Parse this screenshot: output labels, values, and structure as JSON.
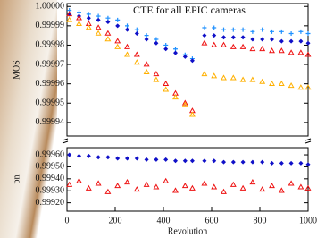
{
  "chart_data": [
    {
      "type": "scatter",
      "title": "CTE for all EPIC cameras",
      "ylabel": "MOS",
      "x": [
        10,
        50,
        90,
        130,
        170,
        210,
        250,
        290,
        330,
        370,
        410,
        450,
        490,
        520,
        570,
        610,
        650,
        690,
        730,
        770,
        810,
        850,
        890,
        930,
        970,
        1000
      ],
      "xlim": [
        0,
        1000
      ],
      "ylim": [
        0.999933,
        1.0000015
      ],
      "yticks": [
        {
          "value": 1.0,
          "label": "1.00000"
        },
        {
          "value": 0.99999,
          "label": "0.99999"
        },
        {
          "value": 0.99998,
          "label": "0.99998"
        },
        {
          "value": 0.99997,
          "label": "0.99997"
        },
        {
          "value": 0.99996,
          "label": "0.99996"
        },
        {
          "value": 0.99995,
          "label": "0.99995"
        },
        {
          "value": 0.99994,
          "label": "0.99994"
        }
      ],
      "grid": false,
      "series": [
        {
          "color": "#1e90ff",
          "marker": "plus",
          "values": [
            0.999998,
            0.999997,
            0.999996,
            0.999995,
            0.999994,
            0.999993,
            0.99999,
            0.999988,
            0.999985,
            0.999983,
            0.99998,
            0.999978,
            0.999975,
            0.999973,
            0.999989,
            0.999989,
            0.999988,
            0.999988,
            0.999988,
            0.999987,
            0.999988,
            0.999987,
            0.999987,
            0.999986,
            0.999987,
            0.999986
          ]
        },
        {
          "color": "#1010c8",
          "marker": "diamond",
          "values": [
            0.999996,
            0.999995,
            0.999994,
            0.999993,
            0.999992,
            0.99999,
            0.999988,
            0.999986,
            0.999983,
            0.999981,
            0.999978,
            0.999976,
            0.999974,
            0.999972,
            0.999985,
            0.999985,
            0.999984,
            0.999984,
            0.999984,
            0.999983,
            0.999983,
            0.999983,
            0.999982,
            0.999982,
            0.999982,
            0.999981
          ]
        },
        {
          "color": "#ee1111",
          "marker": "triangle",
          "values": [
            0.999996,
            0.999994,
            0.999991,
            0.999989,
            0.999986,
            0.999982,
            0.999979,
            0.999975,
            0.99997,
            0.999965,
            0.99996,
            0.999955,
            0.99995,
            0.999946,
            0.999981,
            0.99998,
            0.99998,
            0.999979,
            0.999979,
            0.999978,
            0.999978,
            0.999977,
            0.999977,
            0.999976,
            0.999976,
            0.999975
          ]
        },
        {
          "color": "#ffb000",
          "marker": "triangle",
          "values": [
            0.999993,
            0.999991,
            0.999989,
            0.999986,
            0.999983,
            0.999979,
            0.999975,
            0.999971,
            0.999966,
            0.999962,
            0.999957,
            0.999953,
            0.999949,
            0.999944,
            0.999965,
            0.999964,
            0.999963,
            0.999963,
            0.999962,
            0.999962,
            0.999961,
            0.99996,
            0.99996,
            0.999959,
            0.999958,
            0.999958
          ]
        }
      ]
    },
    {
      "type": "scatter",
      "ylabel": "pn",
      "xlabel": "Revolution",
      "x": [
        10,
        50,
        90,
        130,
        170,
        210,
        250,
        290,
        330,
        370,
        410,
        450,
        490,
        520,
        570,
        610,
        650,
        690,
        730,
        770,
        810,
        850,
        890,
        930,
        970,
        1000
      ],
      "xlim": [
        0,
        1000
      ],
      "xticks": [
        0,
        200,
        400,
        600,
        800,
        1000
      ],
      "ylim": [
        0.99913,
        0.99966
      ],
      "yticks": [
        {
          "value": 0.9996,
          "label": "0.99960"
        },
        {
          "value": 0.9995,
          "label": "0.99950"
        },
        {
          "value": 0.9994,
          "label": "0.99940"
        },
        {
          "value": 0.9993,
          "label": "0.99930"
        },
        {
          "value": 0.9992,
          "label": "0.99920"
        }
      ],
      "grid": false,
      "series": [
        {
          "color": "#1010c8",
          "marker": "diamond",
          "values": [
            0.9996,
            0.99959,
            0.99959,
            0.99958,
            0.99958,
            0.99957,
            0.99957,
            0.99957,
            0.99956,
            0.99956,
            0.99956,
            0.99955,
            0.99955,
            0.99955,
            0.99955,
            0.99955,
            0.99954,
            0.99954,
            0.99954,
            0.99954,
            0.99954,
            0.99953,
            0.99953,
            0.99953,
            0.99953,
            0.99952
          ]
        },
        {
          "color": "#ee1111",
          "marker": "triangle",
          "values": [
            0.99935,
            0.99938,
            0.99932,
            0.99936,
            0.99929,
            0.99934,
            0.99937,
            0.99931,
            0.99935,
            0.99933,
            0.99938,
            0.9993,
            0.99934,
            0.99932,
            0.99936,
            0.99933,
            0.99929,
            0.99935,
            0.99932,
            0.99937,
            0.99931,
            0.99934,
            0.9993,
            0.99936,
            0.99933,
            0.99932
          ]
        }
      ]
    }
  ]
}
